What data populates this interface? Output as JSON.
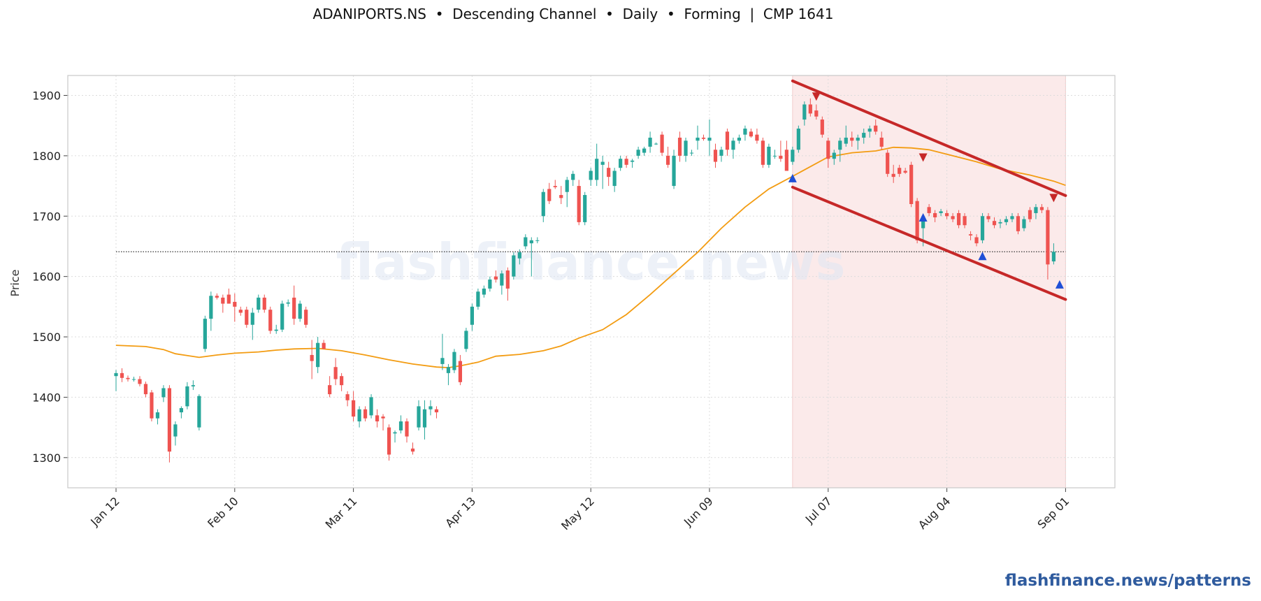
{
  "header": {
    "title": "ADANIPORTS.NS  •  Descending Channel  •  Daily  •  Forming  |  CMP 1641"
  },
  "watermark": "flashfinance.news",
  "footer": {
    "link_text": "flashfinance.news/patterns"
  },
  "colors": {
    "up": "#26a69a",
    "down": "#ef5350",
    "ma": "#f39c12",
    "channel": "#c62828",
    "highlight": "#fbeaea",
    "marker_high": "#c62828",
    "marker_low": "#1f4fd6",
    "watermark": "#dfe5f3",
    "footer": "#2f5b9e"
  },
  "chart_data": {
    "type": "candlestick",
    "ticker": "ADANIPORTS.NS",
    "pattern": "Descending Channel",
    "timeframe": "Daily",
    "status": "Forming",
    "cmp": 1641,
    "ylabel": "Price",
    "ylim": [
      1250,
      1933
    ],
    "yticks": [
      1300,
      1400,
      1500,
      1600,
      1700,
      1800,
      1900
    ],
    "x_ticks": [
      {
        "label": "Jan 12",
        "index": 0
      },
      {
        "label": "Feb 10",
        "index": 20
      },
      {
        "label": "Mar 11",
        "index": 40
      },
      {
        "label": "Apr 13",
        "index": 60
      },
      {
        "label": "May 12",
        "index": 80
      },
      {
        "label": "Jun 09",
        "index": 100
      },
      {
        "label": "Jul 07",
        "index": 120
      },
      {
        "label": "Aug 04",
        "index": 140
      },
      {
        "label": "Sep 01",
        "index": 160
      }
    ],
    "grid": true,
    "cmp_line": 1641,
    "highlight_range": [
      114,
      160
    ],
    "candles": [
      [
        1435,
        1445,
        1410,
        1440
      ],
      [
        1440,
        1448,
        1425,
        1432
      ],
      [
        1432,
        1436,
        1426,
        1430
      ],
      [
        1430,
        1434,
        1426,
        1430
      ],
      [
        1430,
        1435,
        1418,
        1422
      ],
      [
        1422,
        1426,
        1400,
        1405
      ],
      [
        1408,
        1412,
        1360,
        1365
      ],
      [
        1365,
        1380,
        1355,
        1375
      ],
      [
        1400,
        1420,
        1392,
        1415
      ],
      [
        1415,
        1420,
        1292,
        1310
      ],
      [
        1335,
        1360,
        1320,
        1355
      ],
      [
        1375,
        1385,
        1365,
        1382
      ],
      [
        1385,
        1425,
        1380,
        1418
      ],
      [
        1418,
        1428,
        1412,
        1420
      ],
      [
        1350,
        1405,
        1345,
        1402
      ],
      [
        1480,
        1535,
        1475,
        1530
      ],
      [
        1530,
        1575,
        1510,
        1568
      ],
      [
        1568,
        1572,
        1562,
        1565
      ],
      [
        1565,
        1570,
        1540,
        1555
      ],
      [
        1570,
        1580,
        1560,
        1555
      ],
      [
        1558,
        1572,
        1525,
        1550
      ],
      [
        1545,
        1550,
        1535,
        1540
      ],
      [
        1545,
        1550,
        1515,
        1520
      ],
      [
        1520,
        1548,
        1495,
        1540
      ],
      [
        1545,
        1570,
        1540,
        1565
      ],
      [
        1565,
        1570,
        1540,
        1545
      ],
      [
        1545,
        1550,
        1505,
        1510
      ],
      [
        1510,
        1520,
        1505,
        1512
      ],
      [
        1512,
        1560,
        1508,
        1555
      ],
      [
        1555,
        1562,
        1550,
        1557
      ],
      [
        1565,
        1585,
        1520,
        1530
      ],
      [
        1530,
        1560,
        1525,
        1555
      ],
      [
        1545,
        1550,
        1515,
        1520
      ],
      [
        1470,
        1495,
        1430,
        1460
      ],
      [
        1450,
        1500,
        1440,
        1490
      ],
      [
        1490,
        1495,
        1480,
        1480
      ],
      [
        1420,
        1435,
        1400,
        1405
      ],
      [
        1450,
        1465,
        1420,
        1430
      ],
      [
        1435,
        1440,
        1410,
        1420
      ],
      [
        1405,
        1410,
        1385,
        1395
      ],
      [
        1395,
        1410,
        1360,
        1368
      ],
      [
        1360,
        1385,
        1350,
        1380
      ],
      [
        1380,
        1385,
        1360,
        1365
      ],
      [
        1370,
        1405,
        1365,
        1400
      ],
      [
        1370,
        1380,
        1350,
        1360
      ],
      [
        1368,
        1372,
        1345,
        1365
      ],
      [
        1350,
        1355,
        1295,
        1305
      ],
      [
        1340,
        1345,
        1325,
        1342
      ],
      [
        1345,
        1370,
        1340,
        1360
      ],
      [
        1360,
        1365,
        1325,
        1335
      ],
      [
        1315,
        1325,
        1305,
        1310
      ],
      [
        1350,
        1395,
        1345,
        1385
      ],
      [
        1350,
        1395,
        1330,
        1380
      ],
      [
        1380,
        1395,
        1370,
        1385
      ],
      [
        1380,
        1385,
        1365,
        1375
      ],
      [
        1455,
        1505,
        1445,
        1465
      ],
      [
        1440,
        1455,
        1420,
        1450
      ],
      [
        1445,
        1480,
        1440,
        1475
      ],
      [
        1460,
        1470,
        1420,
        1425
      ],
      [
        1480,
        1515,
        1475,
        1510
      ],
      [
        1520,
        1555,
        1510,
        1550
      ],
      [
        1550,
        1580,
        1545,
        1575
      ],
      [
        1570,
        1585,
        1565,
        1580
      ],
      [
        1580,
        1600,
        1575,
        1595
      ],
      [
        1600,
        1610,
        1590,
        1595
      ],
      [
        1585,
        1610,
        1570,
        1605
      ],
      [
        1610,
        1615,
        1560,
        1580
      ],
      [
        1600,
        1640,
        1595,
        1635
      ],
      [
        1630,
        1645,
        1620,
        1640
      ],
      [
        1650,
        1670,
        1645,
        1665
      ],
      [
        1655,
        1665,
        1600,
        1660
      ],
      [
        1660,
        1665,
        1655,
        1660
      ],
      [
        1700,
        1745,
        1690,
        1740
      ],
      [
        1745,
        1755,
        1720,
        1725
      ],
      [
        1750,
        1760,
        1745,
        1748
      ],
      [
        1735,
        1750,
        1720,
        1730
      ],
      [
        1740,
        1765,
        1715,
        1760
      ],
      [
        1760,
        1775,
        1750,
        1770
      ],
      [
        1750,
        1760,
        1685,
        1690
      ],
      [
        1690,
        1740,
        1685,
        1735
      ],
      [
        1760,
        1780,
        1750,
        1775
      ],
      [
        1760,
        1820,
        1750,
        1795
      ],
      [
        1785,
        1800,
        1745,
        1790
      ],
      [
        1780,
        1790,
        1750,
        1765
      ],
      [
        1750,
        1780,
        1740,
        1775
      ],
      [
        1780,
        1800,
        1775,
        1795
      ],
      [
        1795,
        1800,
        1780,
        1785
      ],
      [
        1790,
        1795,
        1780,
        1792
      ],
      [
        1800,
        1815,
        1795,
        1810
      ],
      [
        1805,
        1815,
        1800,
        1812
      ],
      [
        1815,
        1840,
        1805,
        1830
      ],
      [
        1820,
        1822,
        1818,
        1820
      ],
      [
        1835,
        1840,
        1800,
        1805
      ],
      [
        1800,
        1815,
        1780,
        1785
      ],
      [
        1750,
        1810,
        1745,
        1800
      ],
      [
        1830,
        1840,
        1790,
        1800
      ],
      [
        1800,
        1830,
        1790,
        1825
      ],
      [
        1805,
        1810,
        1800,
        1805
      ],
      [
        1825,
        1850,
        1810,
        1830
      ],
      [
        1830,
        1835,
        1825,
        1828
      ],
      [
        1825,
        1860,
        1800,
        1830
      ],
      [
        1810,
        1820,
        1780,
        1790
      ],
      [
        1800,
        1815,
        1790,
        1810
      ],
      [
        1840,
        1845,
        1800,
        1810
      ],
      [
        1810,
        1830,
        1795,
        1825
      ],
      [
        1825,
        1835,
        1820,
        1830
      ],
      [
        1835,
        1850,
        1825,
        1845
      ],
      [
        1840,
        1845,
        1830,
        1832
      ],
      [
        1835,
        1845,
        1820,
        1825
      ],
      [
        1825,
        1830,
        1780,
        1785
      ],
      [
        1785,
        1820,
        1780,
        1815
      ],
      [
        1800,
        1810,
        1795,
        1800
      ],
      [
        1800,
        1825,
        1790,
        1795
      ],
      [
        1810,
        1825,
        1775,
        1775
      ],
      [
        1790,
        1815,
        1785,
        1810
      ],
      [
        1810,
        1850,
        1805,
        1845
      ],
      [
        1860,
        1890,
        1850,
        1885
      ],
      [
        1885,
        1895,
        1865,
        1870
      ],
      [
        1875,
        1885,
        1860,
        1865
      ],
      [
        1860,
        1865,
        1830,
        1835
      ],
      [
        1825,
        1830,
        1780,
        1795
      ],
      [
        1795,
        1810,
        1785,
        1805
      ],
      [
        1810,
        1830,
        1790,
        1825
      ],
      [
        1820,
        1850,
        1815,
        1830
      ],
      [
        1830,
        1840,
        1815,
        1825
      ],
      [
        1825,
        1835,
        1810,
        1830
      ],
      [
        1830,
        1845,
        1820,
        1838
      ],
      [
        1840,
        1850,
        1830,
        1845
      ],
      [
        1850,
        1860,
        1835,
        1840
      ],
      [
        1830,
        1840,
        1810,
        1815
      ],
      [
        1805,
        1810,
        1765,
        1770
      ],
      [
        1770,
        1785,
        1755,
        1765
      ],
      [
        1780,
        1785,
        1765,
        1770
      ],
      [
        1775,
        1780,
        1770,
        1772
      ],
      [
        1785,
        1790,
        1715,
        1720
      ],
      [
        1725,
        1730,
        1655,
        1660
      ],
      [
        1680,
        1700,
        1650,
        1695
      ],
      [
        1715,
        1720,
        1700,
        1705
      ],
      [
        1705,
        1710,
        1690,
        1698
      ],
      [
        1705,
        1712,
        1700,
        1708
      ],
      [
        1705,
        1710,
        1695,
        1700
      ],
      [
        1700,
        1705,
        1690,
        1695
      ],
      [
        1705,
        1710,
        1680,
        1685
      ],
      [
        1700,
        1705,
        1680,
        1685
      ],
      [
        1670,
        1675,
        1660,
        1668
      ],
      [
        1665,
        1670,
        1650,
        1655
      ],
      [
        1660,
        1705,
        1655,
        1700
      ],
      [
        1700,
        1705,
        1690,
        1695
      ],
      [
        1692,
        1698,
        1680,
        1685
      ],
      [
        1688,
        1695,
        1680,
        1690
      ],
      [
        1690,
        1700,
        1685,
        1695
      ],
      [
        1695,
        1705,
        1690,
        1700
      ],
      [
        1700,
        1705,
        1670,
        1675
      ],
      [
        1680,
        1700,
        1675,
        1695
      ],
      [
        1710,
        1715,
        1690,
        1695
      ],
      [
        1705,
        1720,
        1695,
        1715
      ],
      [
        1715,
        1720,
        1705,
        1710
      ],
      [
        1710,
        1715,
        1595,
        1620
      ],
      [
        1625,
        1655,
        1620,
        1641
      ]
    ],
    "moving_average": [
      {
        "i": 0,
        "v": 1486
      },
      {
        "i": 5,
        "v": 1484
      },
      {
        "i": 8,
        "v": 1479
      },
      {
        "i": 10,
        "v": 1472
      },
      {
        "i": 14,
        "v": 1466
      },
      {
        "i": 17,
        "v": 1470
      },
      {
        "i": 20,
        "v": 1473
      },
      {
        "i": 24,
        "v": 1475
      },
      {
        "i": 27,
        "v": 1478
      },
      {
        "i": 30,
        "v": 1480
      },
      {
        "i": 34,
        "v": 1481
      },
      {
        "i": 38,
        "v": 1477
      },
      {
        "i": 42,
        "v": 1470
      },
      {
        "i": 46,
        "v": 1462
      },
      {
        "i": 50,
        "v": 1455
      },
      {
        "i": 54,
        "v": 1450
      },
      {
        "i": 56,
        "v": 1449
      },
      {
        "i": 58,
        "v": 1452
      },
      {
        "i": 61,
        "v": 1458
      },
      {
        "i": 64,
        "v": 1468
      },
      {
        "i": 68,
        "v": 1471
      },
      {
        "i": 72,
        "v": 1477
      },
      {
        "i": 75,
        "v": 1485
      },
      {
        "i": 78,
        "v": 1498
      },
      {
        "i": 80,
        "v": 1505
      },
      {
        "i": 82,
        "v": 1512
      },
      {
        "i": 86,
        "v": 1537
      },
      {
        "i": 90,
        "v": 1570
      },
      {
        "i": 94,
        "v": 1605
      },
      {
        "i": 98,
        "v": 1640
      },
      {
        "i": 102,
        "v": 1680
      },
      {
        "i": 106,
        "v": 1715
      },
      {
        "i": 110,
        "v": 1745
      },
      {
        "i": 114,
        "v": 1766
      },
      {
        "i": 117,
        "v": 1782
      },
      {
        "i": 120,
        "v": 1798
      },
      {
        "i": 124,
        "v": 1805
      },
      {
        "i": 128,
        "v": 1808
      },
      {
        "i": 131,
        "v": 1814
      },
      {
        "i": 134,
        "v": 1813
      },
      {
        "i": 137,
        "v": 1810
      },
      {
        "i": 141,
        "v": 1800
      },
      {
        "i": 145,
        "v": 1790
      },
      {
        "i": 149,
        "v": 1778
      },
      {
        "i": 154,
        "v": 1768
      },
      {
        "i": 158,
        "v": 1758
      },
      {
        "i": 160,
        "v": 1751
      }
    ],
    "channel_upper": [
      [
        114,
        1924
      ],
      [
        160,
        1734
      ]
    ],
    "channel_lower": [
      [
        114,
        1748
      ],
      [
        160,
        1562
      ]
    ],
    "high_markers": [
      [
        118,
        1898
      ],
      [
        136,
        1797
      ],
      [
        158,
        1730
      ]
    ],
    "low_markers": [
      [
        114,
        1763
      ],
      [
        136,
        1698
      ],
      [
        146,
        1634
      ],
      [
        159,
        1587
      ]
    ]
  }
}
